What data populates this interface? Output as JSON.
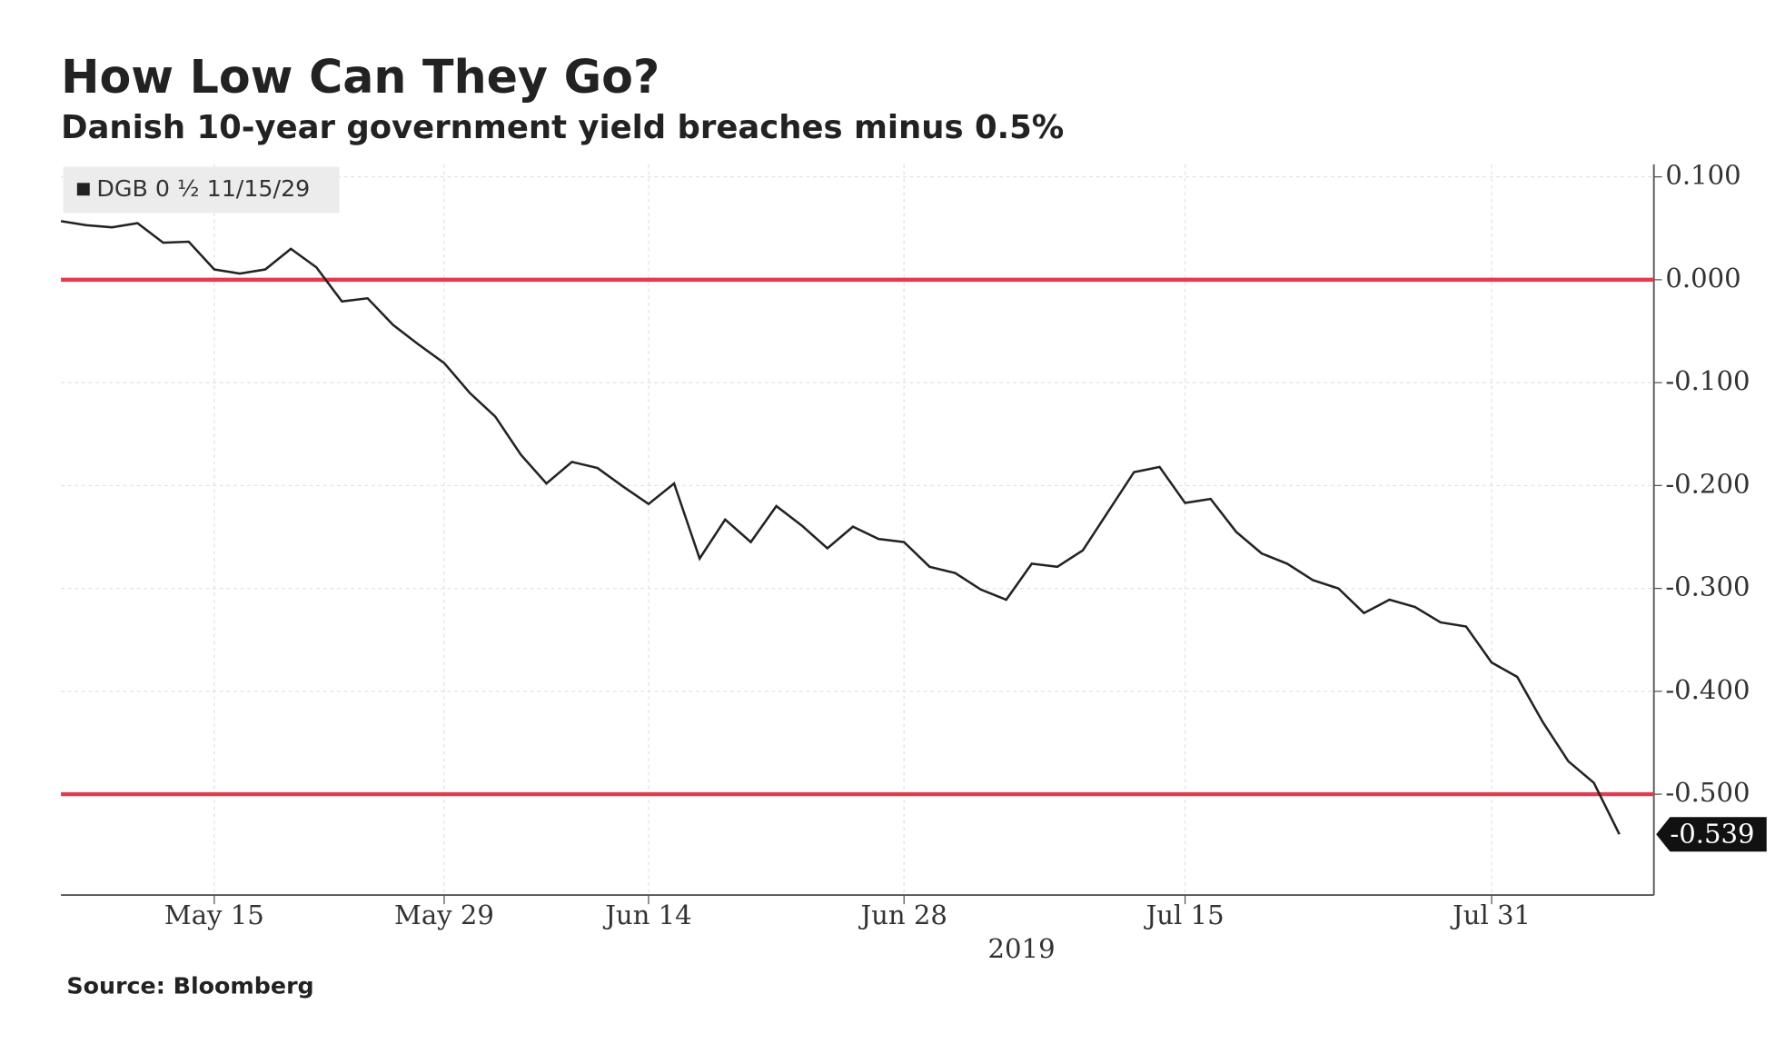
{
  "chart_data": {
    "type": "line",
    "title": "How Low Can They Go?",
    "subtitle": "Danish 10-year government yield breaches minus 0.5%",
    "source": "Source: Bloomberg",
    "x_year": "2019",
    "categories": [
      null,
      null,
      null,
      null,
      null,
      null,
      "May 15",
      null,
      null,
      null,
      null,
      null,
      null,
      null,
      null,
      "May 29",
      null,
      null,
      null,
      null,
      null,
      null,
      null,
      "Jun 14",
      null,
      null,
      null,
      null,
      null,
      null,
      null,
      null,
      null,
      "Jun 28",
      null,
      null,
      null,
      null,
      null,
      null,
      null,
      null,
      null,
      null,
      "Jul 15",
      null,
      null,
      null,
      null,
      null,
      null,
      null,
      null,
      null,
      null,
      null,
      "Jul 31",
      null,
      null,
      null,
      null,
      null
    ],
    "series": [
      {
        "name": "DGB 0 ½ 11/15/29",
        "color": "#222222",
        "values": [
          0.057,
          0.053,
          0.051,
          0.055,
          0.036,
          0.037,
          0.01,
          0.006,
          0.01,
          0.03,
          0.012,
          -0.021,
          -0.018,
          -0.044,
          -0.063,
          -0.081,
          -0.11,
          -0.133,
          -0.17,
          -0.198,
          -0.177,
          -0.183,
          -0.201,
          -0.218,
          -0.198,
          -0.271,
          -0.233,
          -0.255,
          -0.22,
          -0.239,
          -0.261,
          -0.24,
          -0.252,
          -0.255,
          -0.279,
          -0.285,
          -0.301,
          -0.311,
          -0.276,
          -0.279,
          -0.263,
          -0.225,
          -0.187,
          -0.182,
          -0.217,
          -0.213,
          -0.245,
          -0.266,
          -0.276,
          -0.292,
          -0.3,
          -0.324,
          -0.311,
          -0.318,
          -0.333,
          -0.337,
          -0.372,
          -0.386,
          -0.43,
          -0.468,
          -0.489,
          -0.539
        ]
      }
    ],
    "reference_lines": [
      0,
      -0.5
    ],
    "reference_color": "#e23b4e",
    "ylim": [
      -0.598,
      0.112
    ],
    "yticks": [
      {
        "value": 0.1,
        "label": "0.100"
      },
      {
        "value": 0,
        "label": "0.000"
      },
      {
        "value": -0.1,
        "label": "-0.100"
      },
      {
        "value": -0.2,
        "label": "-0.200"
      },
      {
        "value": -0.3,
        "label": "-0.300"
      },
      {
        "value": -0.4,
        "label": "-0.400"
      },
      {
        "value": -0.5,
        "label": "-0.500"
      }
    ],
    "grid": true
  }
}
